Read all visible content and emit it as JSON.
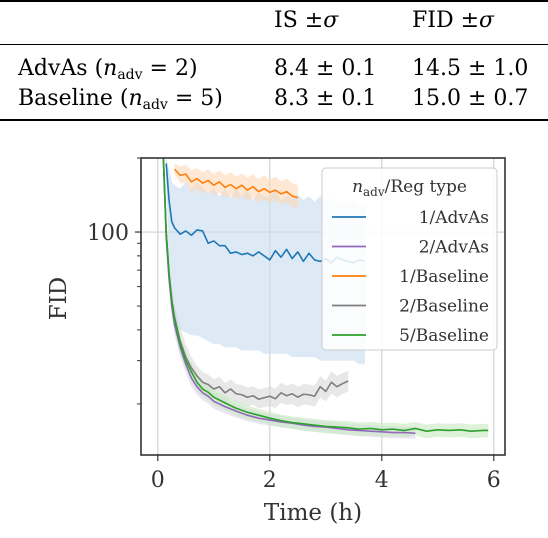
{
  "table": {
    "headers": [
      "",
      "IS ±σ",
      "FID ±σ"
    ],
    "rows": [
      {
        "method": "AdvAs",
        "n_adv": "(n_adv = 2)",
        "is": "8.4 ± 0.1",
        "fid": "14.5 ± 1.0"
      },
      {
        "method": "Baseline",
        "n_adv": "(n_adv = 5)",
        "is": "8.3 ± 0.1",
        "fid": "15.0 ± 0.7"
      }
    ]
  },
  "chart_data": {
    "type": "line",
    "xlabel": "Time (h)",
    "ylabel": "FID",
    "xlim": [
      -0.3,
      6.2
    ],
    "ylim": [
      12.4,
      200
    ],
    "yscale": "log",
    "xticks": [
      "0",
      "2",
      "4",
      "6"
    ],
    "yticks": [
      "100"
    ],
    "grid": true,
    "legend_title": "n_adv/Reg type",
    "legend_position": "top-right",
    "series": [
      {
        "name": "1/AdvAs",
        "color": "#1f77b4",
        "band_color": "#c6dbef",
        "x": [
          0.15,
          0.2,
          0.25,
          0.3,
          0.4,
          0.5,
          0.6,
          0.7,
          0.8,
          0.9,
          1.0,
          1.1,
          1.2,
          1.3,
          1.4,
          1.5,
          1.6,
          1.7,
          1.8,
          1.9,
          2.0,
          2.1,
          2.2,
          2.3,
          2.4,
          2.5,
          2.6,
          2.7,
          2.8,
          2.9,
          3.0,
          3.1,
          3.2,
          3.3,
          3.4,
          3.5,
          3.6,
          3.7
        ],
        "y": [
          190,
          135,
          110,
          104,
          98,
          101,
          97,
          102,
          101,
          90,
          92,
          88,
          88,
          82,
          83,
          81,
          82,
          80,
          83,
          80,
          77,
          84,
          79,
          85,
          78,
          83,
          76,
          82,
          77,
          76,
          78,
          75,
          79,
          77,
          76,
          75,
          77,
          76
        ],
        "lower": [
          170,
          70,
          48,
          42,
          40,
          39,
          38,
          38,
          37,
          36,
          35,
          35,
          34,
          34,
          34,
          33,
          33,
          33,
          33,
          32,
          32,
          32,
          32,
          32,
          31,
          31,
          31,
          31,
          31,
          30,
          30,
          30,
          30,
          30,
          30,
          30,
          29,
          29
        ],
        "upper": [
          200,
          180,
          160,
          155,
          150,
          160,
          150,
          160,
          152,
          145,
          150,
          140,
          150,
          138,
          150,
          140,
          148,
          135,
          145,
          140,
          138,
          150,
          135,
          140,
          137,
          142,
          135,
          140,
          133,
          140,
          135,
          137,
          132,
          134,
          130,
          135,
          128,
          130
        ]
      },
      {
        "name": "2/AdvAs",
        "color": "#9467bd",
        "band_color": "#e0d4ec",
        "x": [
          0.1,
          0.15,
          0.2,
          0.25,
          0.3,
          0.4,
          0.5,
          0.6,
          0.7,
          0.8,
          0.9,
          1.0,
          1.2,
          1.4,
          1.6,
          1.8,
          2.0,
          2.2,
          2.4,
          2.6,
          2.8,
          3.0,
          3.2,
          3.4,
          3.6,
          3.8,
          4.0,
          4.2,
          4.4,
          4.6
        ],
        "y": [
          200,
          95,
          65,
          50,
          42,
          34,
          29,
          25.5,
          23.5,
          22.2,
          21.5,
          20.5,
          19.5,
          18.7,
          18,
          17.5,
          17.2,
          16.9,
          16.7,
          16.4,
          16.2,
          16.1,
          15.9,
          15.7,
          15.6,
          15.5,
          15.4,
          15.3,
          15.3,
          15.2
        ],
        "lower": [
          195,
          86,
          58,
          45,
          38,
          31,
          26.8,
          23.5,
          21.8,
          20.7,
          20.1,
          19.1,
          18.3,
          17.6,
          17,
          16.6,
          16.3,
          16.1,
          15.9,
          15.6,
          15.4,
          15.3,
          15.1,
          14.9,
          14.8,
          14.7,
          14.6,
          14.5,
          14.5,
          14.4
        ],
        "upper": [
          200,
          106,
          72,
          56,
          47,
          38,
          32,
          28,
          25.5,
          24,
          23.2,
          22.1,
          21,
          20,
          19.2,
          18.6,
          18.2,
          17.9,
          17.6,
          17.3,
          17.1,
          17,
          16.8,
          16.6,
          16.5,
          16.4,
          16.3,
          16.2,
          16.2,
          16.1
        ]
      },
      {
        "name": "1/Baseline",
        "color": "#ff7f0e",
        "band_color": "#fdd9b5",
        "x": [
          0.3,
          0.4,
          0.5,
          0.6,
          0.7,
          0.8,
          0.9,
          1.0,
          1.1,
          1.2,
          1.3,
          1.4,
          1.5,
          1.6,
          1.7,
          1.8,
          1.9,
          2.0,
          2.1,
          2.2,
          2.3,
          2.4,
          2.5
        ],
        "y": [
          180,
          170,
          172,
          160,
          165,
          158,
          162,
          155,
          160,
          152,
          156,
          150,
          155,
          148,
          153,
          146,
          150,
          145,
          148,
          143,
          146,
          140,
          138
        ],
        "lower": [
          172,
          158,
          158,
          145,
          150,
          143,
          147,
          140,
          145,
          138,
          141,
          136,
          140,
          134,
          138,
          132,
          136,
          131,
          134,
          129,
          132,
          127,
          125
        ],
        "upper": [
          190,
          185,
          188,
          178,
          182,
          175,
          180,
          172,
          178,
          170,
          175,
          168,
          173,
          166,
          172,
          164,
          170,
          163,
          168,
          161,
          165,
          158,
          155
        ]
      },
      {
        "name": "2/Baseline",
        "color": "#7f7f7f",
        "band_color": "#d9d9d9",
        "x": [
          0.1,
          0.15,
          0.2,
          0.25,
          0.3,
          0.4,
          0.5,
          0.6,
          0.7,
          0.8,
          0.9,
          1.0,
          1.1,
          1.2,
          1.3,
          1.4,
          1.5,
          1.6,
          1.7,
          1.8,
          1.9,
          2.0,
          2.1,
          2.2,
          2.3,
          2.4,
          2.5,
          2.6,
          2.7,
          2.8,
          2.9,
          3.0,
          3.1,
          3.2,
          3.3,
          3.4
        ],
        "y": [
          200,
          100,
          68,
          53,
          45,
          36,
          31,
          28,
          26,
          24.5,
          24,
          23,
          23.5,
          22.2,
          23,
          22,
          21.8,
          21.3,
          21.6,
          20.9,
          21.2,
          21.5,
          21,
          22.2,
          21.6,
          22,
          21.3,
          21.9,
          21.8,
          21.5,
          23.5,
          22.5,
          24.5,
          23.5,
          24.2,
          24.8
        ],
        "lower": [
          195,
          90,
          60,
          47,
          40,
          32,
          28,
          25.5,
          23.8,
          22.5,
          22,
          21.2,
          21.5,
          20.4,
          21,
          20.2,
          20,
          19.6,
          19.8,
          19.2,
          19.4,
          19.6,
          19.2,
          20.2,
          19.8,
          20,
          19.4,
          19.9,
          19.8,
          19.5,
          21.2,
          20.5,
          22,
          21.3,
          22,
          22.5
        ],
        "upper": [
          200,
          112,
          78,
          61,
          51,
          41,
          35,
          31,
          28.5,
          27,
          26.3,
          25.2,
          25.8,
          24.3,
          25.2,
          24.1,
          23.9,
          23.3,
          23.6,
          22.9,
          23.2,
          23.6,
          23.1,
          24.4,
          23.7,
          24.2,
          23.5,
          24.1,
          24,
          23.7,
          26,
          24.8,
          27.2,
          26,
          26.7,
          27.3
        ]
      },
      {
        "name": "5/Baseline",
        "color": "#2ca02c",
        "band_color": "#c7e9c0",
        "x": [
          0.1,
          0.15,
          0.2,
          0.25,
          0.3,
          0.4,
          0.5,
          0.6,
          0.7,
          0.8,
          0.9,
          1.0,
          1.2,
          1.4,
          1.6,
          1.8,
          2.0,
          2.2,
          2.4,
          2.6,
          2.8,
          3.0,
          3.2,
          3.4,
          3.6,
          3.8,
          4.0,
          4.2,
          4.4,
          4.6,
          4.8,
          5.0,
          5.2,
          5.4,
          5.6,
          5.8,
          5.9
        ],
        "y": [
          200,
          100,
          68,
          52,
          44,
          35,
          30,
          27,
          24.5,
          23,
          22.3,
          21.3,
          20.2,
          19.2,
          18.5,
          18,
          17.5,
          17.1,
          16.8,
          16.6,
          16.4,
          16.2,
          16.1,
          16,
          15.8,
          15.9,
          15.7,
          15.8,
          15.6,
          15.9,
          15.5,
          15.7,
          15.6,
          15.7,
          15.5,
          15.6,
          15.6
        ],
        "lower": [
          195,
          90,
          61,
          47,
          40,
          32,
          27.5,
          24.8,
          22.6,
          21.3,
          20.7,
          19.8,
          18.8,
          17.9,
          17.3,
          16.9,
          16.4,
          16.1,
          15.8,
          15.6,
          15.4,
          15.2,
          15.1,
          15,
          14.8,
          14.9,
          14.7,
          14.8,
          14.6,
          14.9,
          14.5,
          14.7,
          14.6,
          14.7,
          14.5,
          14.6,
          14.6
        ],
        "upper": [
          200,
          110,
          75,
          57,
          48,
          38,
          32.5,
          29.2,
          26.4,
          24.7,
          23.9,
          22.8,
          21.6,
          20.5,
          19.7,
          19.1,
          18.6,
          18.1,
          17.8,
          17.6,
          17.4,
          17.2,
          17.1,
          17,
          16.8,
          16.9,
          16.7,
          16.8,
          16.6,
          16.9,
          16.5,
          16.7,
          16.6,
          16.7,
          16.5,
          16.6,
          16.6
        ]
      }
    ]
  }
}
